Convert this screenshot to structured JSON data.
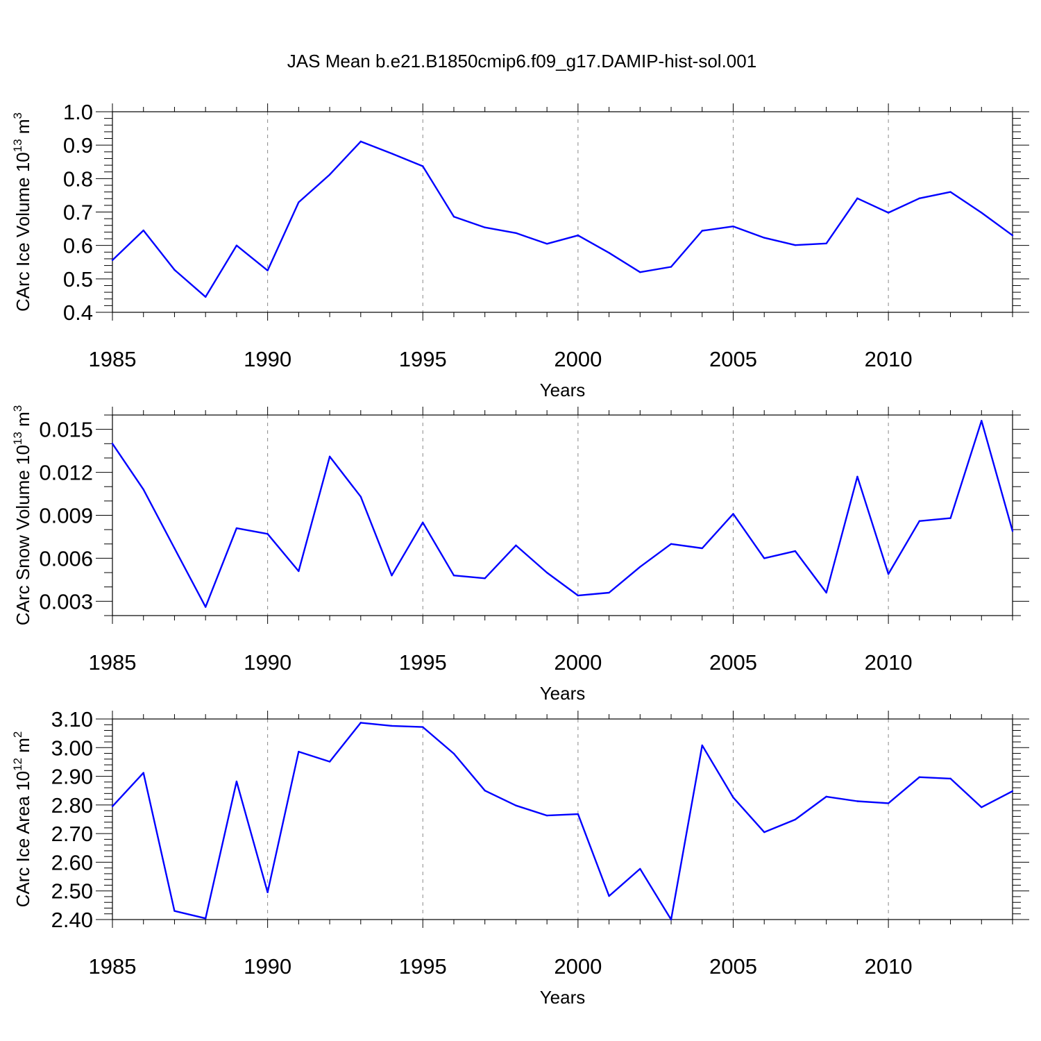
{
  "figure_title": "JAS Mean b.e21.B1850cmip6.f09_g17.DAMIP-hist-sol.001",
  "colors": {
    "series": "#0000ff",
    "axis": "#000000",
    "grid": "#888888"
  },
  "chart_data": [
    {
      "type": "line",
      "ylabel": "CArc Ice Volume 10",
      "ylabel_sup": "13",
      "ylabel_unit": " m",
      "ylabel_unit_sup": "3",
      "xlabel": "Years",
      "xlim": [
        1985,
        2014
      ],
      "ylim": [
        0.4,
        1.0
      ],
      "xticks": [
        1985,
        1990,
        1995,
        2000,
        2005,
        2010
      ],
      "xtick_labels": [
        "1985",
        "1990",
        "1995",
        "2000",
        "2005",
        "2010"
      ],
      "yticks": [
        0.4,
        0.5,
        0.6,
        0.7,
        0.8,
        0.9,
        1.0
      ],
      "ytick_labels": [
        "0.4",
        "0.5",
        "0.6",
        "0.7",
        "0.8",
        "0.9",
        "1.0"
      ],
      "yminor_step": 0.02,
      "grid": "x-dashed",
      "x": [
        1985,
        1986,
        1987,
        1988,
        1989,
        1990,
        1991,
        1992,
        1993,
        1994,
        1995,
        1996,
        1997,
        1998,
        1999,
        2000,
        2001,
        2002,
        2003,
        2004,
        2005,
        2006,
        2007,
        2008,
        2009,
        2010,
        2011,
        2012,
        2013,
        2014
      ],
      "values": [
        0.556,
        0.645,
        0.527,
        0.446,
        0.6,
        0.525,
        0.729,
        0.812,
        0.911,
        0.875,
        0.837,
        0.686,
        0.654,
        0.637,
        0.605,
        0.63,
        0.578,
        0.52,
        0.536,
        0.644,
        0.657,
        0.623,
        0.601,
        0.606,
        0.741,
        0.698,
        0.741,
        0.76,
        0.698,
        0.63
      ]
    },
    {
      "type": "line",
      "ylabel": "CArc Snow Volume 10",
      "ylabel_sup": "13",
      "ylabel_unit": " m",
      "ylabel_unit_sup": "3",
      "xlabel": "Years",
      "xlim": [
        1985,
        2014
      ],
      "ylim": [
        0.002,
        0.016
      ],
      "xticks": [
        1985,
        1990,
        1995,
        2000,
        2005,
        2010
      ],
      "xtick_labels": [
        "1985",
        "1990",
        "1995",
        "2000",
        "2005",
        "2010"
      ],
      "yticks": [
        0.003,
        0.006,
        0.009,
        0.012,
        0.015
      ],
      "ytick_labels": [
        "0.003",
        "0.006",
        "0.009",
        "0.012",
        "0.015"
      ],
      "yminor_step": 0.001,
      "grid": "x-dashed",
      "x": [
        1985,
        1986,
        1987,
        1988,
        1989,
        1990,
        1991,
        1992,
        1993,
        1994,
        1995,
        1996,
        1997,
        1998,
        1999,
        2000,
        2001,
        2002,
        2003,
        2004,
        2005,
        2006,
        2007,
        2008,
        2009,
        2010,
        2011,
        2012,
        2013,
        2014
      ],
      "values": [
        0.014,
        0.0108,
        0.0067,
        0.0026,
        0.0081,
        0.0077,
        0.0051,
        0.0131,
        0.0103,
        0.0048,
        0.0085,
        0.0048,
        0.0046,
        0.0069,
        0.005,
        0.0034,
        0.0036,
        0.0054,
        0.007,
        0.0067,
        0.0091,
        0.006,
        0.0065,
        0.0036,
        0.0117,
        0.0049,
        0.0086,
        0.0088,
        0.0156,
        0.0079
      ]
    },
    {
      "type": "line",
      "ylabel": "CArc Ice Area 10",
      "ylabel_sup": "12",
      "ylabel_unit": " m",
      "ylabel_unit_sup": "2",
      "xlabel": "Years",
      "xlim": [
        1985,
        2014
      ],
      "ylim": [
        2.4,
        3.1
      ],
      "xticks": [
        1985,
        1990,
        1995,
        2000,
        2005,
        2010
      ],
      "xtick_labels": [
        "1985",
        "1990",
        "1995",
        "2000",
        "2005",
        "2010"
      ],
      "yticks": [
        2.4,
        2.5,
        2.6,
        2.7,
        2.8,
        2.9,
        3.0,
        3.1
      ],
      "ytick_labels": [
        "2.40",
        "2.50",
        "2.60",
        "2.70",
        "2.80",
        "2.90",
        "3.00",
        "3.10"
      ],
      "yminor_step": 0.02,
      "grid": "x-dashed",
      "x": [
        1985,
        1986,
        1987,
        1988,
        1989,
        1990,
        1991,
        1992,
        1993,
        1994,
        1995,
        1996,
        1997,
        1998,
        1999,
        2000,
        2001,
        2002,
        2003,
        2004,
        2005,
        2006,
        2007,
        2008,
        2009,
        2010,
        2011,
        2012,
        2013,
        2014
      ],
      "values": [
        2.795,
        2.912,
        2.43,
        2.404,
        2.882,
        2.495,
        2.986,
        2.951,
        3.087,
        3.076,
        3.072,
        2.979,
        2.85,
        2.798,
        2.763,
        2.768,
        2.482,
        2.577,
        2.4,
        3.008,
        2.826,
        2.705,
        2.749,
        2.829,
        2.813,
        2.806,
        2.897,
        2.892,
        2.792,
        2.848
      ]
    }
  ]
}
